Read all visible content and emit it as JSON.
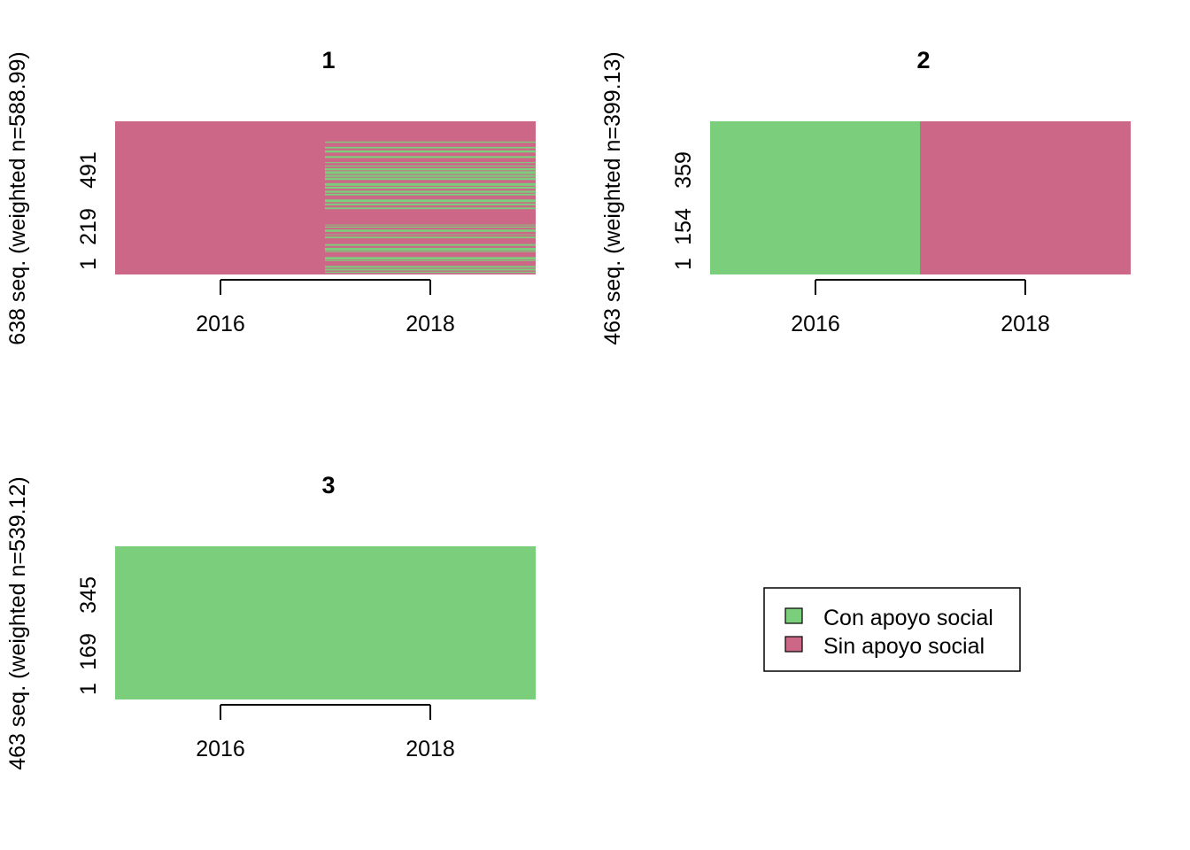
{
  "colors": {
    "con": "#7BCE7B",
    "sin": "#CC6788"
  },
  "legend": {
    "items": [
      {
        "label": "Con apoyo social",
        "color": "#7BCE7B"
      },
      {
        "label": "Sin apoyo social",
        "color": "#CC6788"
      }
    ]
  },
  "chart_data": [
    {
      "type": "sequence-index",
      "title": "1",
      "ylabel": "638 seq. (weighted n=588.99)",
      "x_ticks": [
        "2016",
        "2018"
      ],
      "y_ticks": [
        "1",
        "219",
        "491"
      ],
      "states": [
        "Con apoyo social",
        "Sin apoyo social"
      ],
      "periods": [
        {
          "period": "2016",
          "state": "Sin apoyo social"
        },
        {
          "period": "2018",
          "state": "mixed"
        }
      ]
    },
    {
      "type": "sequence-index",
      "title": "2",
      "ylabel": "463 seq. (weighted n=399.13)",
      "x_ticks": [
        "2016",
        "2018"
      ],
      "y_ticks": [
        "1",
        "154",
        "359"
      ],
      "states": [
        "Con apoyo social",
        "Sin apoyo social"
      ],
      "periods": [
        {
          "period": "2016",
          "state": "Con apoyo social"
        },
        {
          "period": "2018",
          "state": "Sin apoyo social"
        }
      ]
    },
    {
      "type": "sequence-index",
      "title": "3",
      "ylabel": "463 seq. (weighted n=539.12)",
      "x_ticks": [
        "2016",
        "2018"
      ],
      "y_ticks": [
        "1",
        "169",
        "345"
      ],
      "states": [
        "Con apoyo social",
        "Sin apoyo social"
      ],
      "periods": [
        {
          "period": "2016",
          "state": "Con apoyo social"
        },
        {
          "period": "2018",
          "state": "Con apoyo social"
        }
      ]
    }
  ]
}
